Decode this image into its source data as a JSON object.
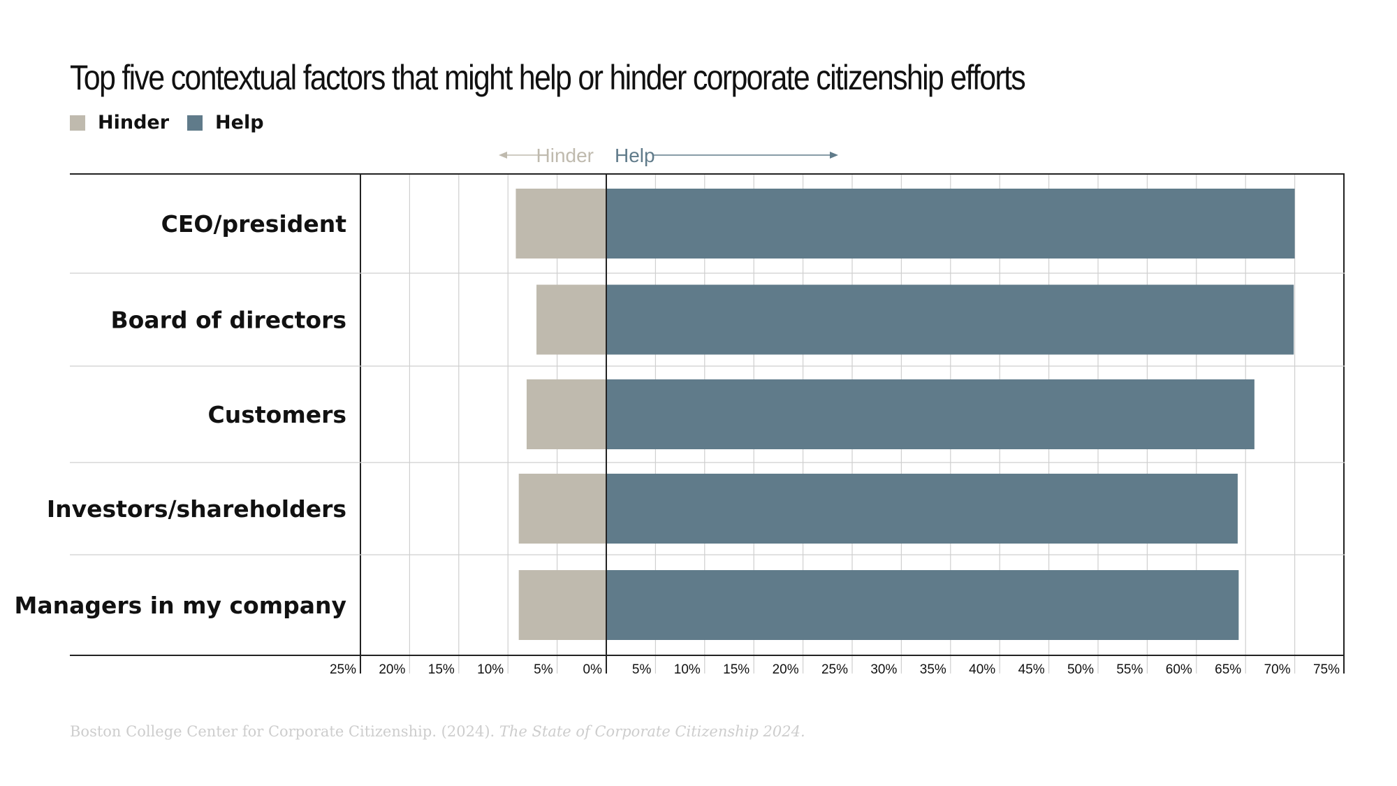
{
  "title": "Top five contextual factors that might help or hinder corporate citizenship efforts",
  "legend": [
    {
      "label": "Hinder",
      "color": "#bfbaae"
    },
    {
      "label": "Help",
      "color": "#607b8a"
    }
  ],
  "direction_labels": {
    "hinder": "Hinder",
    "help": "Help"
  },
  "source": {
    "plain": "Boston College Center for Corporate Citizenship. (2024). ",
    "italic": "The State of Corporate Citizenship 2024."
  },
  "chart_data": {
    "type": "bar",
    "orientation": "horizontal-diverging",
    "title": "Top five contextual factors that might help or hinder corporate citizenship efforts",
    "categories": [
      "CEO/president",
      "Board of directors",
      "Customers",
      "Investors/shareholders",
      "Managers in my company"
    ],
    "series": [
      {
        "name": "Hinder",
        "color": "#bfbaae",
        "values": [
          9.2,
          7.1,
          8.1,
          8.9,
          8.9
        ]
      },
      {
        "name": "Help",
        "color": "#607b8a",
        "values": [
          70.0,
          69.9,
          65.9,
          64.2,
          64.3
        ]
      }
    ],
    "xlim": [
      -25,
      75
    ],
    "tick_values": [
      -25,
      -20,
      -15,
      -10,
      -5,
      0,
      5,
      10,
      15,
      20,
      25,
      30,
      35,
      40,
      45,
      50,
      55,
      60,
      65,
      70,
      75
    ],
    "tick_labels": [
      "25%",
      "20%",
      "15%",
      "10%",
      "5%",
      "0%",
      "5%",
      "10%",
      "15%",
      "20%",
      "25%",
      "30%",
      "35%",
      "40%",
      "45%",
      "50%",
      "55%",
      "60%",
      "65%",
      "70%",
      "75%"
    ],
    "grid": true,
    "legend_position": "top-left"
  }
}
